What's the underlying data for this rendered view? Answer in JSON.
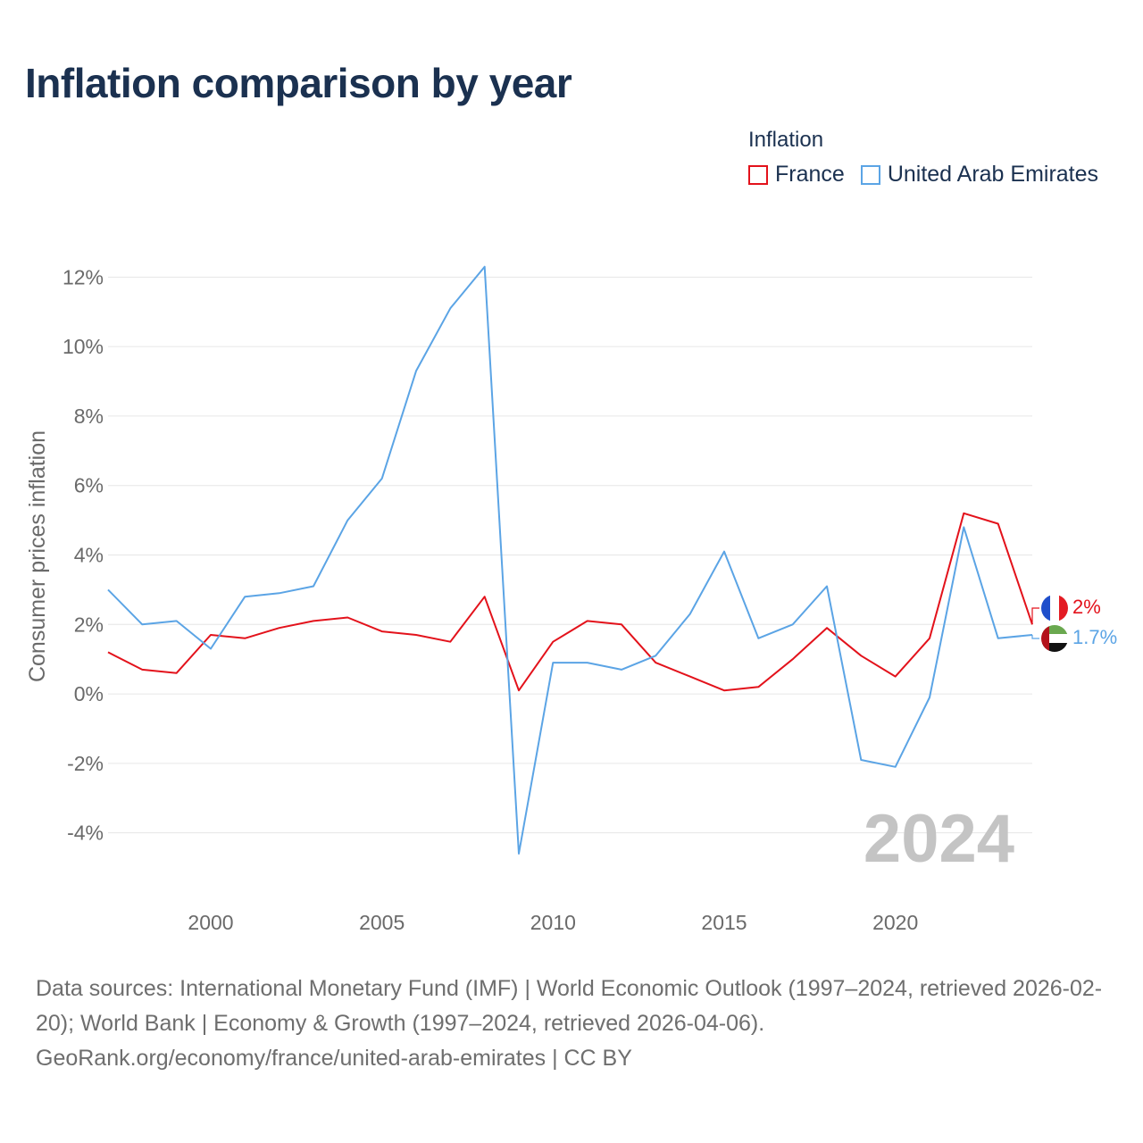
{
  "title": "Inflation comparison by year",
  "legend": {
    "title": "Inflation",
    "items": [
      {
        "name": "France",
        "color": "#e3121b"
      },
      {
        "name": "United Arab Emirates",
        "color": "#5ba4e5"
      }
    ]
  },
  "chart_data": {
    "type": "line",
    "ylabel": "Consumer prices inflation",
    "xlabel": "",
    "ylim": [
      -5.5,
      12.6
    ],
    "xlim": [
      1997,
      2024
    ],
    "yticks": [
      {
        "value": 12,
        "label": "12%"
      },
      {
        "value": 10,
        "label": "10%"
      },
      {
        "value": 8,
        "label": "8%"
      },
      {
        "value": 6,
        "label": "6%"
      },
      {
        "value": 4,
        "label": "4%"
      },
      {
        "value": 2,
        "label": "2%"
      },
      {
        "value": 0,
        "label": "0%"
      },
      {
        "value": -2,
        "label": "-2%"
      },
      {
        "value": -4,
        "label": "-4%"
      }
    ],
    "xticks": [
      {
        "value": 2000,
        "label": "2000"
      },
      {
        "value": 2005,
        "label": "2005"
      },
      {
        "value": 2010,
        "label": "2010"
      },
      {
        "value": 2015,
        "label": "2015"
      },
      {
        "value": 2020,
        "label": "2020"
      }
    ],
    "x": [
      1997,
      1998,
      1999,
      2000,
      2001,
      2002,
      2003,
      2004,
      2005,
      2006,
      2007,
      2008,
      2009,
      2010,
      2011,
      2012,
      2013,
      2014,
      2015,
      2016,
      2017,
      2018,
      2019,
      2020,
      2021,
      2022,
      2023,
      2024
    ],
    "series": [
      {
        "name": "France",
        "color": "#e3121b",
        "values": [
          1.2,
          0.7,
          0.6,
          1.7,
          1.6,
          1.9,
          2.1,
          2.2,
          1.8,
          1.7,
          1.5,
          2.8,
          0.1,
          1.5,
          2.1,
          2.0,
          0.9,
          0.5,
          0.1,
          0.2,
          1.0,
          1.9,
          1.1,
          0.5,
          1.6,
          5.2,
          4.9,
          2.0
        ],
        "end_label": "2%"
      },
      {
        "name": "United Arab Emirates",
        "color": "#5ba4e5",
        "values": [
          3.0,
          2.0,
          2.1,
          1.3,
          2.8,
          2.9,
          3.1,
          5.0,
          6.2,
          9.3,
          11.1,
          12.3,
          -4.6,
          0.9,
          0.9,
          0.7,
          1.1,
          2.3,
          4.1,
          1.6,
          2.0,
          3.1,
          -1.9,
          -2.1,
          -0.1,
          4.8,
          1.6,
          1.7
        ],
        "end_label": "1.7%"
      }
    ],
    "year_watermark": "2024"
  },
  "footer": {
    "line1": "Data sources: International Monetary Fund (IMF) | World Economic Outlook (1997–2024, retrieved 2026-02-20); World Bank | Economy & Growth (1997–2024, retrieved 2026-04-06).",
    "line2": "GeoRank.org/economy/france/united-arab-emirates | CC BY"
  }
}
